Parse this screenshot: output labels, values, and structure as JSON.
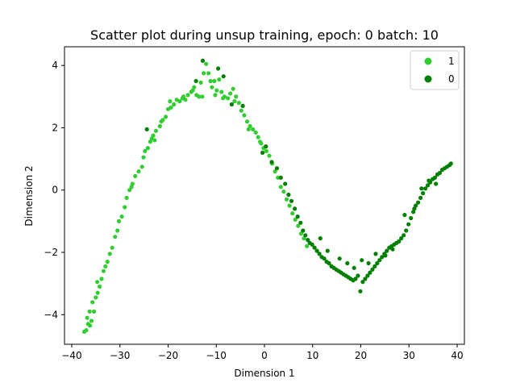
{
  "chart_data": {
    "type": "scatter",
    "title": "Scatter plot during unsup training, epoch: 0 batch: 10",
    "xlabel": "Dimension 1",
    "ylabel": "Dimension 2",
    "xlim": [
      -41.5,
      41.5
    ],
    "ylim": [
      -4.95,
      4.6
    ],
    "xticks": [
      -40,
      -30,
      -20,
      -10,
      0,
      10,
      20,
      30,
      40
    ],
    "yticks": [
      -4,
      -2,
      0,
      2,
      4
    ],
    "grid": false,
    "legend_position": "top-right",
    "series": [
      {
        "name": "1",
        "color": "#32cd32",
        "points": [
          [
            -37.4,
            -4.55
          ],
          [
            -37.0,
            -4.5
          ],
          [
            -36.6,
            -4.3
          ],
          [
            -36.2,
            -4.35
          ],
          [
            -36.8,
            -4.1
          ],
          [
            -35.9,
            -4.2
          ],
          [
            -36.3,
            -3.9
          ],
          [
            -35.4,
            -3.9
          ],
          [
            -35.7,
            -3.6
          ],
          [
            -35.0,
            -3.45
          ],
          [
            -34.6,
            -3.3
          ],
          [
            -34.2,
            -3.1
          ],
          [
            -34.7,
            -2.95
          ],
          [
            -33.8,
            -2.85
          ],
          [
            -33.4,
            -2.6
          ],
          [
            -32.6,
            -2.3
          ],
          [
            -32.1,
            -2.05
          ],
          [
            -31.6,
            -1.85
          ],
          [
            -31.0,
            -1.5
          ],
          [
            -30.5,
            -1.3
          ],
          [
            -30.2,
            -1.0
          ],
          [
            -29.6,
            -0.85
          ],
          [
            -29.0,
            -0.55
          ],
          [
            -28.6,
            -0.25
          ],
          [
            -28.0,
            0.0
          ],
          [
            -27.4,
            0.2
          ],
          [
            -26.8,
            0.45
          ],
          [
            -26.1,
            0.6
          ],
          [
            -25.4,
            0.75
          ],
          [
            -25.1,
            1.05
          ],
          [
            -24.8,
            1.25
          ],
          [
            -24.2,
            1.35
          ],
          [
            -23.7,
            1.55
          ],
          [
            -23.1,
            1.75
          ],
          [
            -22.5,
            1.9
          ],
          [
            -22.8,
            1.6
          ],
          [
            -21.7,
            2.05
          ],
          [
            -21.1,
            2.25
          ],
          [
            -20.5,
            2.35
          ],
          [
            -20.0,
            2.6
          ],
          [
            -19.4,
            2.65
          ],
          [
            -18.8,
            2.75
          ],
          [
            -19.6,
            2.85
          ],
          [
            -18.2,
            2.9
          ],
          [
            -17.6,
            2.85
          ],
          [
            -17.0,
            2.95
          ],
          [
            -16.4,
            2.9
          ],
          [
            -15.9,
            3.05
          ],
          [
            -15.2,
            3.15
          ],
          [
            -14.6,
            3.3
          ],
          [
            -14.1,
            3.05
          ],
          [
            -13.6,
            3.0
          ],
          [
            -13.2,
            3.45
          ],
          [
            -12.6,
            3.75
          ],
          [
            -12.1,
            4.05
          ],
          [
            -11.6,
            3.75
          ],
          [
            -11.2,
            3.5
          ],
          [
            -10.9,
            3.3
          ],
          [
            -10.4,
            3.5
          ],
          [
            -9.9,
            3.2
          ],
          [
            -9.4,
            3.55
          ],
          [
            -8.9,
            3.15
          ],
          [
            -8.3,
            3.0
          ],
          [
            -7.6,
            2.95
          ],
          [
            -7.1,
            3.1
          ],
          [
            -6.5,
            3.25
          ],
          [
            -5.9,
            3.0
          ],
          [
            -5.3,
            2.8
          ],
          [
            -4.8,
            2.55
          ],
          [
            -4.2,
            2.4
          ],
          [
            -3.6,
            2.2
          ],
          [
            -3.0,
            2.05
          ],
          [
            -2.4,
            1.95
          ],
          [
            -1.8,
            1.85
          ],
          [
            -1.3,
            1.7
          ],
          [
            -0.7,
            1.5
          ],
          [
            -0.2,
            1.35
          ],
          [
            0.4,
            1.25
          ],
          [
            1.0,
            1.1
          ],
          [
            1.6,
            0.85
          ],
          [
            2.2,
            0.6
          ],
          [
            2.8,
            0.4
          ],
          [
            3.4,
            0.1
          ],
          [
            4.0,
            -0.05
          ],
          [
            4.6,
            -0.3
          ],
          [
            5.2,
            -0.5
          ],
          [
            5.8,
            -0.75
          ],
          [
            6.4,
            -0.95
          ],
          [
            7.0,
            -1.15
          ],
          [
            7.6,
            -1.4
          ],
          [
            8.2,
            -1.55
          ],
          [
            8.8,
            -1.8
          ],
          [
            -33.0,
            -2.45
          ],
          [
            -27.6,
            0.1
          ],
          [
            -23.4,
            1.65
          ],
          [
            -21.4,
            2.2
          ],
          [
            -16.8,
            3.0
          ],
          [
            -14.9,
            3.2
          ],
          [
            -12.9,
            3.0
          ],
          [
            -10.2,
            3.05
          ],
          [
            -8.6,
            2.95
          ],
          [
            -6.2,
            2.85
          ],
          [
            -3.3,
            1.95
          ],
          [
            -0.9,
            1.55
          ]
        ]
      },
      {
        "name": "0",
        "color": "#008000",
        "points": [
          [
            -24.4,
            1.95
          ],
          [
            -14.2,
            3.5
          ],
          [
            -12.8,
            4.15
          ],
          [
            -9.6,
            3.9
          ],
          [
            -8.5,
            3.65
          ],
          [
            -6.8,
            2.75
          ],
          [
            -4.5,
            2.7
          ],
          [
            -0.4,
            1.2
          ],
          [
            0.3,
            1.4
          ],
          [
            1.5,
            0.9
          ],
          [
            2.6,
            0.7
          ],
          [
            3.4,
            0.4
          ],
          [
            4.3,
            0.2
          ],
          [
            5.0,
            -0.15
          ],
          [
            5.6,
            -0.35
          ],
          [
            6.3,
            -0.6
          ],
          [
            6.9,
            -0.85
          ],
          [
            7.5,
            -1.05
          ],
          [
            8.0,
            -1.3
          ],
          [
            8.5,
            -1.45
          ],
          [
            9.0,
            -1.6
          ],
          [
            9.4,
            -1.7
          ],
          [
            9.9,
            -1.75
          ],
          [
            10.4,
            -1.85
          ],
          [
            10.9,
            -1.95
          ],
          [
            11.4,
            -2.05
          ],
          [
            11.9,
            -2.15
          ],
          [
            12.4,
            -2.2
          ],
          [
            12.9,
            -2.3
          ],
          [
            13.4,
            -2.35
          ],
          [
            13.9,
            -2.45
          ],
          [
            14.4,
            -2.5
          ],
          [
            14.9,
            -2.55
          ],
          [
            15.4,
            -2.6
          ],
          [
            15.9,
            -2.65
          ],
          [
            16.4,
            -2.7
          ],
          [
            16.9,
            -2.75
          ],
          [
            17.4,
            -2.8
          ],
          [
            17.9,
            -2.85
          ],
          [
            18.4,
            -2.9
          ],
          [
            18.9,
            -2.85
          ],
          [
            19.4,
            -2.75
          ],
          [
            19.9,
            -3.25
          ],
          [
            20.4,
            -2.95
          ],
          [
            20.9,
            -2.85
          ],
          [
            21.4,
            -2.75
          ],
          [
            21.9,
            -2.65
          ],
          [
            22.4,
            -2.55
          ],
          [
            22.9,
            -2.45
          ],
          [
            23.4,
            -2.35
          ],
          [
            23.9,
            -2.25
          ],
          [
            24.4,
            -2.15
          ],
          [
            24.9,
            -2.05
          ],
          [
            25.4,
            -1.95
          ],
          [
            25.9,
            -1.85
          ],
          [
            26.4,
            -1.8
          ],
          [
            26.9,
            -1.75
          ],
          [
            27.4,
            -1.7
          ],
          [
            27.9,
            -1.65
          ],
          [
            28.4,
            -1.55
          ],
          [
            28.9,
            -1.45
          ],
          [
            29.4,
            -1.3
          ],
          [
            29.9,
            -1.1
          ],
          [
            30.4,
            -0.9
          ],
          [
            30.9,
            -0.7
          ],
          [
            31.4,
            -0.5
          ],
          [
            31.9,
            -0.4
          ],
          [
            32.4,
            -0.25
          ],
          [
            32.9,
            -0.1
          ],
          [
            33.4,
            0.05
          ],
          [
            33.9,
            0.15
          ],
          [
            34.4,
            0.25
          ],
          [
            34.9,
            0.35
          ],
          [
            35.4,
            0.4
          ],
          [
            35.9,
            0.5
          ],
          [
            36.4,
            0.55
          ],
          [
            36.9,
            0.65
          ],
          [
            37.4,
            0.7
          ],
          [
            37.9,
            0.75
          ],
          [
            38.4,
            0.8
          ],
          [
            38.7,
            0.85
          ],
          [
            11.6,
            -1.55
          ],
          [
            13.1,
            -1.95
          ],
          [
            15.6,
            -2.2
          ],
          [
            17.2,
            -2.35
          ],
          [
            18.6,
            -2.5
          ],
          [
            20.2,
            -2.25
          ],
          [
            21.6,
            -2.35
          ],
          [
            23.1,
            -2.05
          ],
          [
            25.1,
            -2.1
          ],
          [
            26.6,
            -1.9
          ],
          [
            29.1,
            -0.8
          ],
          [
            31.1,
            -0.6
          ],
          [
            32.6,
            0.05
          ],
          [
            34.1,
            0.3
          ],
          [
            35.6,
            0.2
          ]
        ]
      }
    ]
  }
}
